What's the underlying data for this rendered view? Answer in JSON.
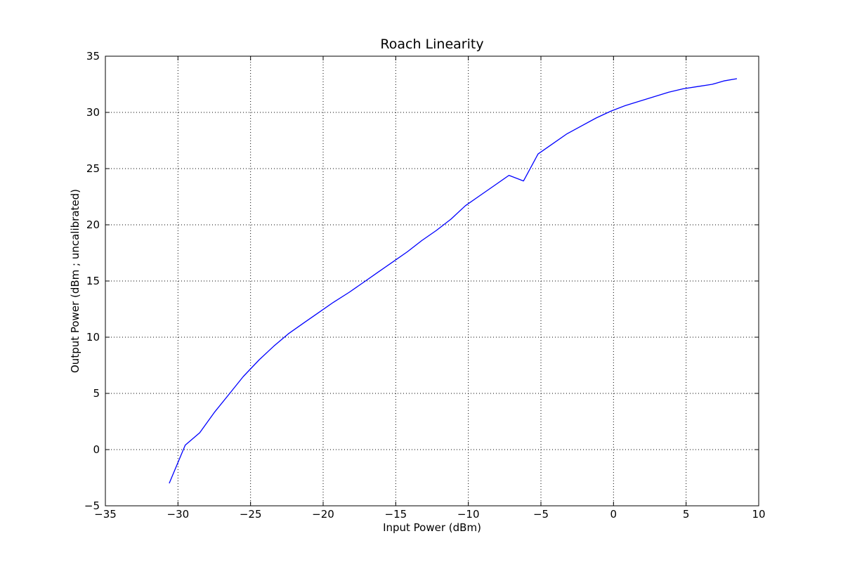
{
  "chart_data": {
    "type": "line",
    "title": "Roach Linearity",
    "xlabel": "Input Power (dBm)",
    "ylabel": "Output Power (dBm ; uncalibrated)",
    "xlim": [
      -35,
      10
    ],
    "ylim": [
      -5,
      35
    ],
    "x_ticks": [
      -35,
      -30,
      -25,
      -20,
      -15,
      -10,
      -5,
      0,
      5,
      10
    ],
    "y_ticks": [
      -5,
      0,
      5,
      10,
      15,
      20,
      25,
      30,
      35
    ],
    "x_tick_labels": [
      "−35",
      "−30",
      "−25",
      "−20",
      "−15",
      "−10",
      "−5",
      "0",
      "5",
      "10"
    ],
    "y_tick_labels": [
      "−5",
      "0",
      "5",
      "10",
      "15",
      "20",
      "25",
      "30",
      "35"
    ],
    "grid": true,
    "series": [
      {
        "color": "#0000ff",
        "x": [
          -30.6,
          -29.5,
          -28.5,
          -27.5,
          -26.5,
          -25.5,
          -24.4,
          -23.4,
          -22.4,
          -21.3,
          -20.3,
          -19.3,
          -18.2,
          -17.2,
          -16.2,
          -15.2,
          -14.2,
          -13.2,
          -12.2,
          -11.2,
          -10.2,
          -9.2,
          -8.2,
          -7.2,
          -6.2,
          -5.2,
          -4.2,
          -3.2,
          -2.2,
          -1.2,
          -0.2,
          0.8,
          1.8,
          2.8,
          3.8,
          4.8,
          5.8,
          6.8,
          7.6,
          8.5
        ],
        "y": [
          -3.0,
          0.4,
          1.5,
          3.3,
          4.9,
          6.5,
          8.0,
          9.2,
          10.3,
          11.3,
          12.2,
          13.1,
          14.0,
          14.9,
          15.8,
          16.7,
          17.6,
          18.6,
          19.5,
          20.5,
          21.7,
          22.6,
          23.5,
          24.4,
          23.9,
          26.3,
          27.2,
          28.1,
          28.8,
          29.5,
          30.1,
          30.6,
          31.0,
          31.4,
          31.8,
          32.1,
          32.3,
          32.5,
          32.8,
          33.0
        ]
      }
    ]
  }
}
